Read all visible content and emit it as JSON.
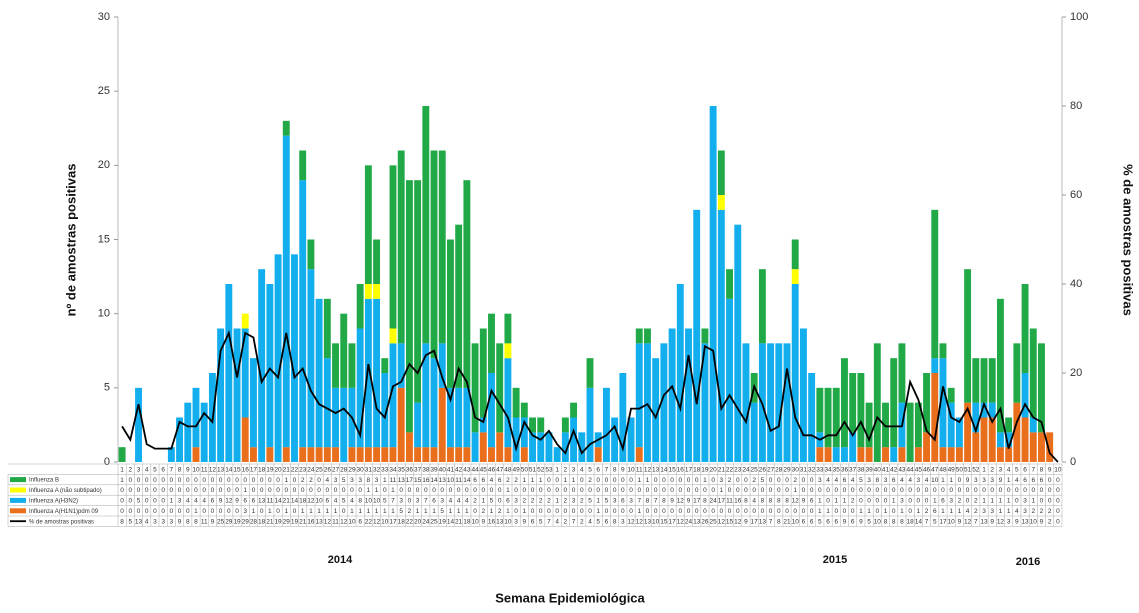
{
  "chart_data": {
    "type": "bar",
    "stacked": true,
    "x_title": "Semana Epidemiológica",
    "y_title": "nº de amostras positivas",
    "y2_title": "% de amostras positivas",
    "year_labels": [
      "2014",
      "2015",
      "2016"
    ],
    "categories": [
      "1",
      "2",
      "3",
      "4",
      "5",
      "6",
      "7",
      "8",
      "9",
      "10",
      "11",
      "12",
      "13",
      "14",
      "15",
      "16",
      "17",
      "18",
      "19",
      "20",
      "21",
      "22",
      "23",
      "24",
      "25",
      "26",
      "27",
      "28",
      "29",
      "30",
      "31",
      "32",
      "33",
      "34",
      "35",
      "36",
      "37",
      "38",
      "39",
      "40",
      "41",
      "42",
      "43",
      "44",
      "45",
      "46",
      "47",
      "48",
      "49",
      "50",
      "51",
      "52",
      "53",
      "1",
      "2",
      "3",
      "4",
      "5",
      "6",
      "7",
      "8",
      "9",
      "10",
      "11",
      "12",
      "13",
      "14",
      "15",
      "16",
      "17",
      "18",
      "19",
      "20",
      "21",
      "22",
      "23",
      "24",
      "25",
      "26",
      "27",
      "28",
      "29",
      "30",
      "31",
      "32",
      "33",
      "34",
      "35",
      "36",
      "37",
      "38",
      "39",
      "40",
      "41",
      "42",
      "43",
      "44",
      "45",
      "46",
      "47",
      "48",
      "49",
      "50",
      "51",
      "52",
      "1",
      "2",
      "3",
      "4",
      "5",
      "6",
      "7",
      "8",
      "9",
      "10"
    ],
    "ylim": [
      0,
      30
    ],
    "yticks": [
      0,
      5,
      10,
      15,
      20,
      25,
      30
    ],
    "y2lim": [
      0,
      100
    ],
    "y2ticks": [
      0,
      20,
      40,
      60,
      80,
      100
    ],
    "series": [
      {
        "name": "Influenza B",
        "color": "#21a947",
        "values": [
          1,
          0,
          0,
          0,
          0,
          0,
          0,
          0,
          0,
          0,
          0,
          0,
          0,
          0,
          0,
          0,
          0,
          0,
          0,
          0,
          1,
          0,
          2,
          2,
          0,
          4,
          3,
          5,
          3,
          3,
          8,
          3,
          1,
          11,
          13,
          17,
          15,
          16,
          14,
          13,
          10,
          11,
          14,
          6,
          6,
          4,
          6,
          2,
          2,
          1,
          1,
          1,
          0,
          0,
          1,
          1,
          0,
          2,
          0,
          0,
          0,
          0,
          0,
          1,
          1,
          0,
          0,
          0,
          0,
          0,
          0,
          1,
          0,
          3,
          2,
          0,
          0,
          2,
          5,
          0,
          0,
          0,
          2,
          0,
          0,
          3,
          4,
          4,
          6,
          4,
          5,
          3,
          8,
          3,
          6,
          4,
          4,
          3,
          4,
          10,
          1,
          1,
          0,
          9,
          3,
          3,
          3,
          9,
          1,
          4,
          6,
          6,
          6,
          0,
          0
        ]
      },
      {
        "name": "Influenza A (não subtipado)",
        "color": "#ffff00",
        "values": [
          0,
          0,
          0,
          0,
          0,
          0,
          0,
          0,
          0,
          0,
          0,
          0,
          0,
          0,
          0,
          1,
          0,
          0,
          0,
          0,
          0,
          0,
          0,
          0,
          0,
          0,
          0,
          0,
          0,
          0,
          1,
          1,
          0,
          1,
          0,
          0,
          0,
          0,
          0,
          0,
          0,
          0,
          0,
          0,
          0,
          0,
          0,
          1,
          0,
          0,
          0,
          0,
          0,
          0,
          0,
          0,
          0,
          0,
          0,
          0,
          0,
          0,
          0,
          0,
          0,
          0,
          0,
          0,
          0,
          0,
          0,
          0,
          0,
          1,
          0,
          0,
          0,
          0,
          0,
          0,
          0,
          0,
          1,
          0,
          0,
          0,
          0,
          0,
          0,
          0,
          0,
          0,
          0,
          0,
          0,
          0,
          0,
          0,
          0,
          0,
          0,
          0,
          0,
          0,
          0,
          0,
          0,
          0,
          0,
          0,
          0,
          0,
          0,
          0,
          0
        ]
      },
      {
        "name": "Influenza A(H3N2)",
        "color": "#12aeee",
        "values": [
          0,
          0,
          5,
          0,
          0,
          0,
          1,
          3,
          4,
          4,
          4,
          6,
          9,
          12,
          9,
          6,
          6,
          13,
          11,
          14,
          21,
          14,
          18,
          12,
          10,
          6,
          4,
          5,
          4,
          8,
          10,
          10,
          5,
          7,
          3,
          0,
          3,
          7,
          6,
          3,
          4,
          4,
          4,
          2,
          1,
          5,
          0,
          6,
          3,
          2,
          2,
          2,
          2,
          1,
          2,
          3,
          2,
          5,
          1,
          5,
          3,
          6,
          3,
          7,
          8,
          7,
          8,
          9,
          12,
          9,
          17,
          8,
          24,
          17,
          11,
          16,
          8,
          4,
          8,
          8,
          8,
          8,
          12,
          9,
          6,
          1,
          0,
          1,
          1,
          2,
          0,
          0,
          0,
          0,
          1,
          3,
          0,
          0,
          0,
          1,
          6,
          3,
          2,
          0,
          2,
          1,
          1,
          1,
          1,
          0,
          3,
          1,
          0,
          0,
          0
        ]
      },
      {
        "name": "Influenza A(H1N1)pdm 09",
        "color": "#ea6f1d",
        "values": [
          0,
          0,
          0,
          0,
          0,
          0,
          0,
          0,
          0,
          1,
          0,
          0,
          0,
          0,
          0,
          3,
          1,
          0,
          1,
          0,
          1,
          0,
          1,
          1,
          1,
          1,
          1,
          0,
          1,
          1,
          1,
          1,
          1,
          1,
          5,
          2,
          1,
          1,
          1,
          5,
          1,
          1,
          1,
          0,
          2,
          1,
          2,
          1,
          0,
          1,
          0,
          0,
          0,
          0,
          0,
          0,
          0,
          0,
          1,
          0,
          0,
          0,
          0,
          1,
          0,
          0,
          0,
          0,
          0,
          0,
          0,
          0,
          0,
          0,
          0,
          0,
          0,
          0,
          0,
          0,
          0,
          0,
          0,
          0,
          0,
          1,
          1,
          0,
          0,
          0,
          1,
          1,
          0,
          1,
          0,
          1,
          0,
          1,
          2,
          6,
          1,
          1,
          1,
          4,
          2,
          3,
          3,
          1,
          1,
          4,
          3,
          2,
          2,
          2,
          0
        ]
      },
      {
        "name": "% de amostras positivas",
        "type": "line",
        "axis": "y2",
        "color": "#000000",
        "values": [
          8,
          5,
          13,
          4,
          3,
          3,
          3,
          9,
          8,
          8,
          11,
          9,
          25,
          29,
          19,
          29,
          28,
          18,
          21,
          19,
          29,
          19,
          21,
          16,
          13,
          12,
          11,
          12,
          10,
          6,
          22,
          12,
          10,
          17,
          18,
          22,
          20,
          24,
          25,
          19,
          14,
          21,
          18,
          10,
          9,
          16,
          13,
          10,
          3,
          9,
          6,
          5,
          7,
          4,
          2,
          7,
          2,
          4,
          5,
          6,
          8,
          3,
          12,
          12,
          13,
          10,
          15,
          17,
          12,
          24,
          13,
          26,
          25,
          12,
          15,
          12,
          9,
          17,
          13,
          7,
          8,
          21,
          10,
          6,
          6,
          5,
          6,
          6,
          9,
          6,
          9,
          5,
          10,
          8,
          8,
          8,
          18,
          14,
          7,
          5,
          17,
          10,
          9,
          12,
          7,
          13,
          9,
          12,
          3,
          9,
          13,
          10,
          9,
          2,
          0
        ]
      }
    ]
  }
}
